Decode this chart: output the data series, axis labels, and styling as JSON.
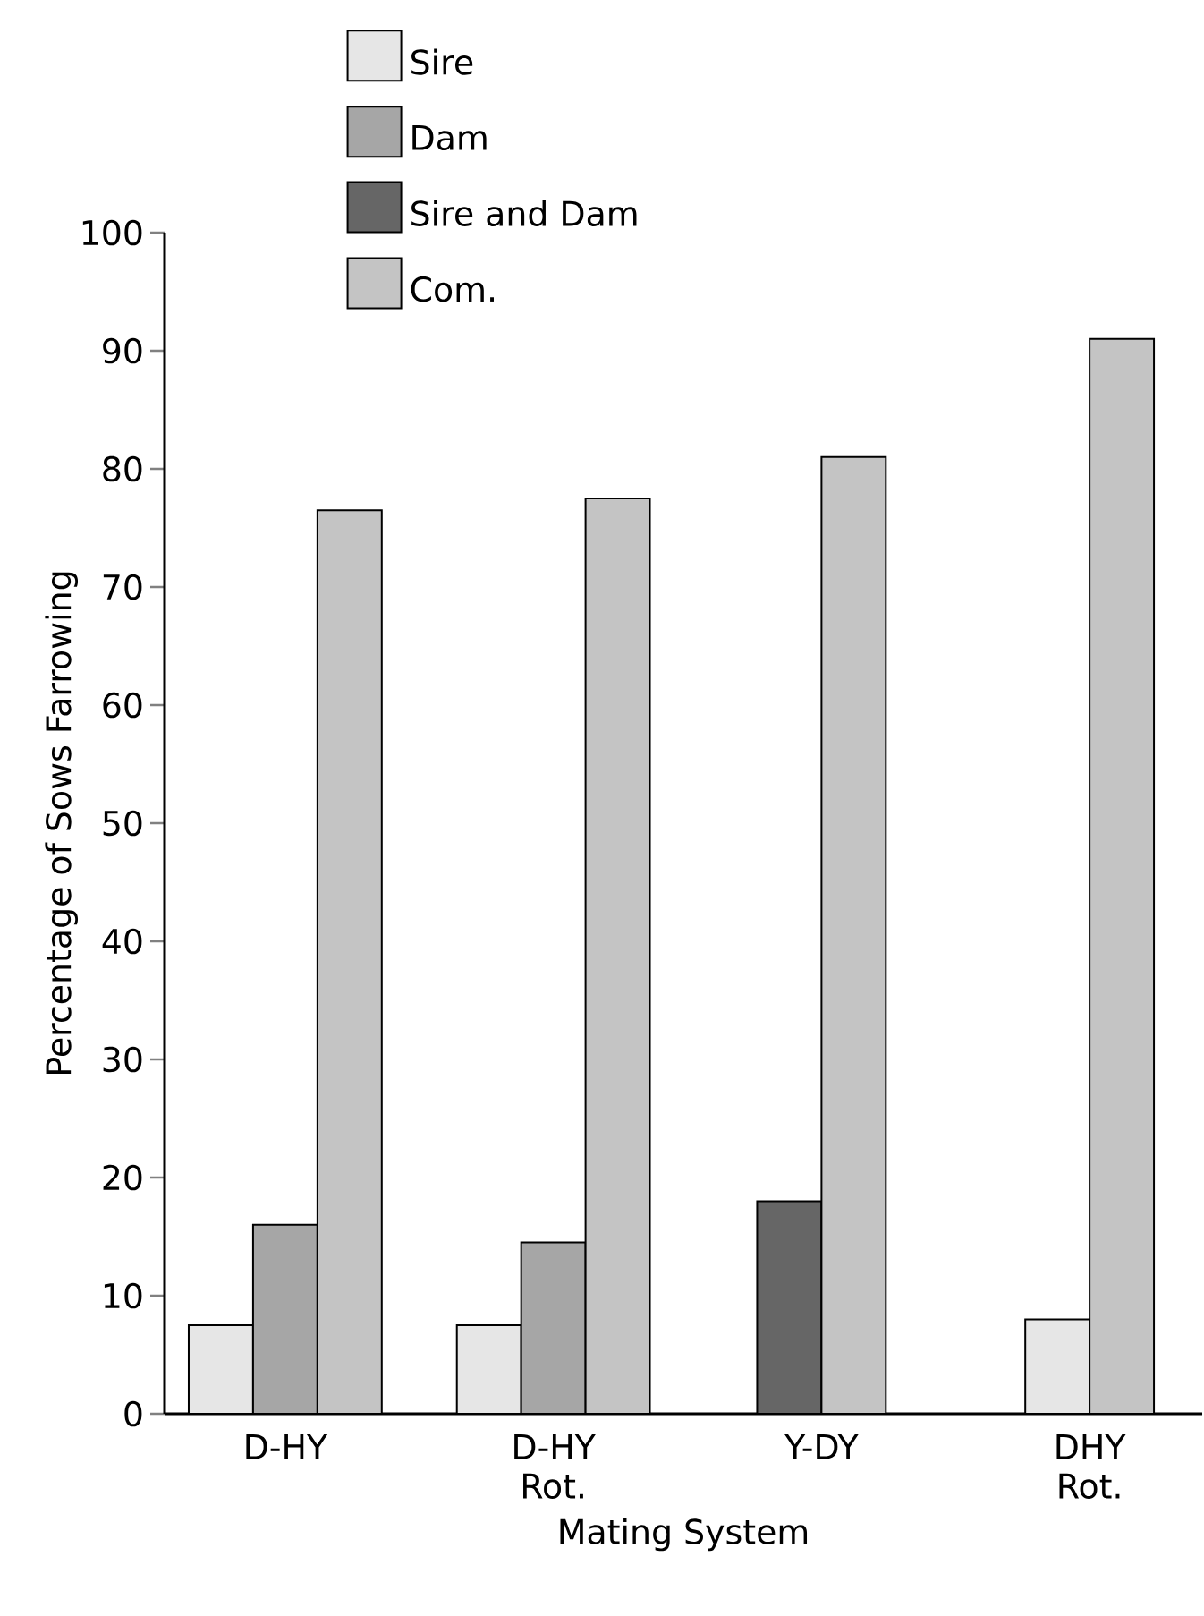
{
  "chart_data": {
    "type": "bar",
    "xlabel": "Mating System",
    "ylabel": "Percentage of Sows Farrowing",
    "categories": [
      "D-HY",
      "D-HY Rot.",
      "Y-DY",
      "DHY Rot."
    ],
    "series": [
      {
        "name": "Sire",
        "color": "#e6e6e6",
        "values": [
          7.5,
          7.5,
          null,
          8
        ]
      },
      {
        "name": "Dam",
        "color": "#a6a6a6",
        "values": [
          16,
          14.5,
          null,
          null
        ]
      },
      {
        "name": "Sire and Dam",
        "color": "#666666",
        "values": [
          null,
          null,
          18,
          null
        ]
      },
      {
        "name": "Com.",
        "color": "#c4c4c4",
        "values": [
          76.5,
          77.5,
          81,
          91
        ]
      }
    ],
    "ylim": [
      0,
      100
    ],
    "yticks": [
      0,
      10,
      20,
      30,
      40,
      50,
      60,
      70,
      80,
      90,
      100
    ],
    "grid": false,
    "legend": "top left"
  }
}
